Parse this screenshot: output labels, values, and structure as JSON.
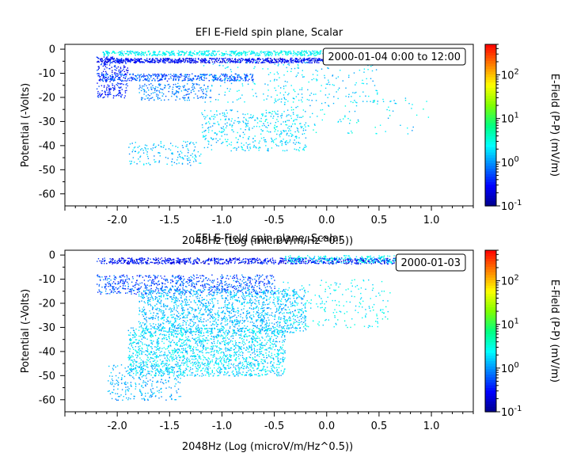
{
  "chart_data": [
    {
      "type": "scatter",
      "title": "EFI  E-Field spin plane, Scalar",
      "xlabel": "2048Hz (Log (microV/m/Hz^0.5))",
      "ylabel": "Potential (-Volts)",
      "annotation": "2000-01-04 0:00 to 12:00",
      "colorbar_label": "E-Field (P-P) (mV/m)",
      "xlim": [
        -2.5,
        1.4
      ],
      "ylim": [
        -65,
        2
      ],
      "xticks": [
        "-2.0",
        "-1.5",
        "-1.0",
        "-0.5",
        "0.0",
        "0.5",
        "1.0"
      ],
      "xtick_values": [
        -2.0,
        -1.5,
        -1.0,
        -0.5,
        0.0,
        0.5,
        1.0
      ],
      "yticks": [
        "0",
        "-10",
        "-20",
        "-30",
        "-40",
        "-50",
        "-60"
      ],
      "ytick_values": [
        0,
        -10,
        -20,
        -30,
        -40,
        -50,
        -60
      ],
      "colorbar": {
        "scale": "log",
        "range": [
          0.1,
          500
        ],
        "ticks": [
          {
            "base": "10",
            "exp": "-1",
            "value": 0.1
          },
          {
            "base": "10",
            "exp": "0",
            "value": 1
          },
          {
            "base": "10",
            "exp": "1",
            "value": 10
          },
          {
            "base": "10",
            "exp": "2",
            "value": 100
          }
        ],
        "colors": [
          "#00008b",
          "#0000ff",
          "#0080ff",
          "#00ffff",
          "#00ff80",
          "#80ff00",
          "#ffff00",
          "#ff8000",
          "#ff0000"
        ]
      },
      "clusters": [
        {
          "x": [
            -2.15,
            0.6
          ],
          "y": [
            -2.5,
            -0.5
          ],
          "n": 700,
          "v": [
            1.5,
            4
          ]
        },
        {
          "x": [
            -2.2,
            0.4
          ],
          "y": [
            -5.5,
            -3.5
          ],
          "n": 900,
          "v": [
            0.15,
            0.5
          ]
        },
        {
          "x": [
            -2.2,
            -1.9
          ],
          "y": [
            -20,
            -3
          ],
          "n": 250,
          "v": [
            0.2,
            0.6
          ]
        },
        {
          "x": [
            -2.15,
            -0.7
          ],
          "y": [
            -13,
            -10
          ],
          "n": 400,
          "v": [
            0.3,
            1.2
          ]
        },
        {
          "x": [
            -1.8,
            -1.1
          ],
          "y": [
            -21,
            -14
          ],
          "n": 200,
          "v": [
            0.5,
            1.5
          ]
        },
        {
          "x": [
            -1.2,
            0.5
          ],
          "y": [
            -22,
            -5
          ],
          "n": 250,
          "v": [
            1.0,
            3
          ]
        },
        {
          "x": [
            -1.2,
            -0.2
          ],
          "y": [
            -42,
            -25
          ],
          "n": 400,
          "v": [
            1.0,
            3
          ]
        },
        {
          "x": [
            -1.9,
            -1.2
          ],
          "y": [
            -48,
            -38
          ],
          "n": 150,
          "v": [
            0.8,
            2.5
          ]
        },
        {
          "x": [
            -0.6,
            1.0
          ],
          "y": [
            -35,
            -20
          ],
          "n": 120,
          "v": [
            1.0,
            4
          ]
        }
      ]
    },
    {
      "type": "scatter",
      "title": "EFI  E-Field spin plane, Scalar",
      "xlabel": "2048Hz (Log (microV/m/Hz^0.5))",
      "ylabel": "Potential (-Volts)",
      "annotation": "2000-01-03",
      "colorbar_label": "E-Field (P-P) (mV/m)",
      "xlim": [
        -2.5,
        1.4
      ],
      "ylim": [
        -65,
        2
      ],
      "xticks": [
        "-2.0",
        "-1.5",
        "-1.0",
        "-0.5",
        "0.0",
        "0.5",
        "1.0"
      ],
      "xtick_values": [
        -2.0,
        -1.5,
        -1.0,
        -0.5,
        0.0,
        0.5,
        1.0
      ],
      "yticks": [
        "0",
        "-10",
        "-20",
        "-30",
        "-40",
        "-50",
        "-60"
      ],
      "ytick_values": [
        0,
        -10,
        -20,
        -30,
        -40,
        -50,
        -60
      ],
      "colorbar": {
        "scale": "log",
        "range": [
          0.1,
          500
        ],
        "ticks": [
          {
            "base": "10",
            "exp": "-1",
            "value": 0.1
          },
          {
            "base": "10",
            "exp": "0",
            "value": 1
          },
          {
            "base": "10",
            "exp": "1",
            "value": 10
          },
          {
            "base": "10",
            "exp": "2",
            "value": 100
          }
        ],
        "colors": [
          "#00008b",
          "#0000ff",
          "#0080ff",
          "#00ffff",
          "#00ff80",
          "#80ff00",
          "#ffff00",
          "#ff8000",
          "#ff0000"
        ]
      },
      "clusters": [
        {
          "x": [
            -2.2,
            0.9
          ],
          "y": [
            -3.5,
            -1
          ],
          "n": 900,
          "v": [
            0.15,
            0.6
          ]
        },
        {
          "x": [
            -0.4,
            1.3
          ],
          "y": [
            -3,
            0
          ],
          "n": 300,
          "v": [
            1.5,
            4
          ]
        },
        {
          "x": [
            -2.2,
            -0.5
          ],
          "y": [
            -16,
            -8
          ],
          "n": 700,
          "v": [
            0.3,
            1.2
          ]
        },
        {
          "x": [
            -1.8,
            -0.2
          ],
          "y": [
            -32,
            -14
          ],
          "n": 1400,
          "v": [
            0.8,
            2.5
          ]
        },
        {
          "x": [
            -1.9,
            -0.4
          ],
          "y": [
            -50,
            -30
          ],
          "n": 1700,
          "v": [
            1.0,
            3.5
          ]
        },
        {
          "x": [
            -2.1,
            -1.4
          ],
          "y": [
            -60,
            -45
          ],
          "n": 250,
          "v": [
            0.8,
            2
          ]
        },
        {
          "x": [
            -0.5,
            0.6
          ],
          "y": [
            -30,
            -10
          ],
          "n": 200,
          "v": [
            1.5,
            4
          ]
        }
      ]
    }
  ]
}
